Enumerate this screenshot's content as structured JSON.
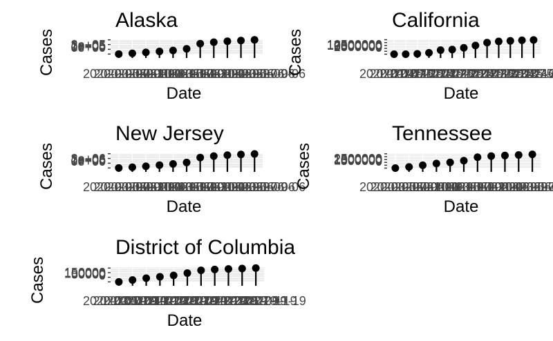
{
  "chart_data": [
    {
      "type": "lollipop",
      "title": "Alaska",
      "xlabel": "Date",
      "ylabel": "Cases",
      "y_ticks": [
        "0e+00",
        "1e+05",
        "2e+05",
        "3e+05"
      ],
      "ylim": [
        -10000,
        310000
      ],
      "x_tick_labels": [
        "2020-03-06",
        "2020-05-06",
        "2020-07-06",
        "2020-09-06",
        "2020-11-06",
        "2021-01-06",
        "2021-03-06",
        "2021-05-06",
        "2021-07-06",
        "2021-09-06",
        "2021-11-06",
        "2022-01-06",
        "2022-03-06",
        "2022-05-06",
        "2022-07-06",
        "2022-09-06"
      ],
      "points": [
        {
          "x": 1,
          "y": 0
        },
        {
          "x": 2,
          "y": 15000
        },
        {
          "x": 3,
          "y": 35000
        },
        {
          "x": 4,
          "y": 55000
        },
        {
          "x": 5,
          "y": 75000
        },
        {
          "x": 6,
          "y": 110000
        },
        {
          "x": 7,
          "y": 220000
        },
        {
          "x": 8,
          "y": 250000
        },
        {
          "x": 9,
          "y": 270000
        },
        {
          "x": 10,
          "y": 285000
        },
        {
          "x": 11,
          "y": 300000
        }
      ],
      "grid": true
    },
    {
      "type": "lollipop",
      "title": "California",
      "xlabel": "Date",
      "ylabel": "Cases",
      "y_ticks": [
        "0",
        "2500000",
        "5000000",
        "7500000",
        "10000000",
        "12500000"
      ],
      "ylim": [
        -300000,
        12800000
      ],
      "x_tick_labels": [
        "2020-01-25",
        "2020-04-25",
        "2020-07-25",
        "2020-10-25",
        "2021-01-25",
        "2021-04-25",
        "2021-07-25",
        "2021-10-25",
        "2022-01-25",
        "2022-04-25",
        "2022-07-25",
        "2022-10-25",
        "2023-01-25",
        "2023-04-25",
        "2023-07-25",
        "2023-10-25",
        "2024-01-25"
      ],
      "points": [
        {
          "x": 1,
          "y": 0
        },
        {
          "x": 2,
          "y": 0
        },
        {
          "x": 3,
          "y": 300000
        },
        {
          "x": 4,
          "y": 1200000
        },
        {
          "x": 5,
          "y": 3500000
        },
        {
          "x": 6,
          "y": 4000000
        },
        {
          "x": 7,
          "y": 5500000
        },
        {
          "x": 8,
          "y": 7500000
        },
        {
          "x": 9,
          "y": 10000000
        },
        {
          "x": 10,
          "y": 11000000
        },
        {
          "x": 11,
          "y": 11500000
        },
        {
          "x": 12,
          "y": 12000000
        },
        {
          "x": 13,
          "y": 12300000
        }
      ],
      "grid": true
    },
    {
      "type": "lollipop",
      "title": "New Jersey",
      "xlabel": "Date",
      "ylabel": "Cases",
      "y_ticks": [
        "0e+00",
        "1e+06",
        "2e+06",
        "3e+06"
      ],
      "ylim": [
        -100000,
        3100000
      ],
      "x_tick_labels": [
        "2020-03-06",
        "2020-05-06",
        "2020-07-06",
        "2020-09-06",
        "2020-11-06",
        "2021-01-06",
        "2021-03-06",
        "2021-05-06",
        "2021-07-06",
        "2021-09-06",
        "2021-11-06",
        "2022-01-06",
        "2022-03-06",
        "2022-05-06",
        "2022-07-06",
        "2022-09-06"
      ],
      "points": [
        {
          "x": 1,
          "y": 0
        },
        {
          "x": 2,
          "y": 150000
        },
        {
          "x": 3,
          "y": 350000
        },
        {
          "x": 4,
          "y": 600000
        },
        {
          "x": 5,
          "y": 850000
        },
        {
          "x": 6,
          "y": 1150000
        },
        {
          "x": 7,
          "y": 2200000
        },
        {
          "x": 8,
          "y": 2500000
        },
        {
          "x": 9,
          "y": 2700000
        },
        {
          "x": 10,
          "y": 2850000
        },
        {
          "x": 11,
          "y": 2950000
        }
      ],
      "grid": true
    },
    {
      "type": "lollipop",
      "title": "Tennessee",
      "xlabel": "Date",
      "ylabel": "Cases",
      "y_ticks": [
        "0",
        "500000",
        "1000000",
        "1500000",
        "2000000",
        "2500000"
      ],
      "ylim": [
        -60000,
        2600000
      ],
      "x_tick_labels": [
        "2020-03-06",
        "2020-05-06",
        "2020-07-06",
        "2020-09-06",
        "2020-11-06",
        "2021-01-06",
        "2021-03-06",
        "2021-05-06",
        "2021-07-06",
        "2021-09-06",
        "2021-11-06",
        "2022-01-06",
        "2022-03-06",
        "2022-05-06",
        "2022-07-06",
        "2022-09-06"
      ],
      "points": [
        {
          "x": 1,
          "y": 0
        },
        {
          "x": 2,
          "y": 200000
        },
        {
          "x": 3,
          "y": 500000
        },
        {
          "x": 4,
          "y": 800000
        },
        {
          "x": 5,
          "y": 1000000
        },
        {
          "x": 6,
          "y": 1300000
        },
        {
          "x": 7,
          "y": 1900000
        },
        {
          "x": 8,
          "y": 2100000
        },
        {
          "x": 9,
          "y": 2200000
        },
        {
          "x": 10,
          "y": 2300000
        },
        {
          "x": 11,
          "y": 2400000
        }
      ],
      "grid": true
    },
    {
      "type": "lollipop",
      "title": "District of Columbia",
      "xlabel": "Date",
      "ylabel": "Cases",
      "y_ticks": [
        "0",
        "50000",
        "100000",
        "150000"
      ],
      "ylim": [
        -5000,
        160000
      ],
      "x_tick_labels": [
        "2020-03-19",
        "2020-05-19",
        "2020-07-19",
        "2020-09-19",
        "2020-11-19",
        "2021-01-19",
        "2021-03-19",
        "2021-05-19",
        "2021-07-19",
        "2021-09-19",
        "2021-11-19",
        "2022-01-19",
        "2022-03-19",
        "2022-05-19",
        "2022-07-19",
        "2022-09-19",
        "2022-11-19"
      ],
      "points": [
        {
          "x": 1,
          "y": 0
        },
        {
          "x": 2,
          "y": 20000
        },
        {
          "x": 3,
          "y": 40000
        },
        {
          "x": 4,
          "y": 55000
        },
        {
          "x": 5,
          "y": 70000
        },
        {
          "x": 6,
          "y": 95000
        },
        {
          "x": 7,
          "y": 125000
        },
        {
          "x": 8,
          "y": 135000
        },
        {
          "x": 9,
          "y": 140000
        },
        {
          "x": 10,
          "y": 145000
        },
        {
          "x": 11,
          "y": 150000
        }
      ],
      "grid": true
    }
  ]
}
